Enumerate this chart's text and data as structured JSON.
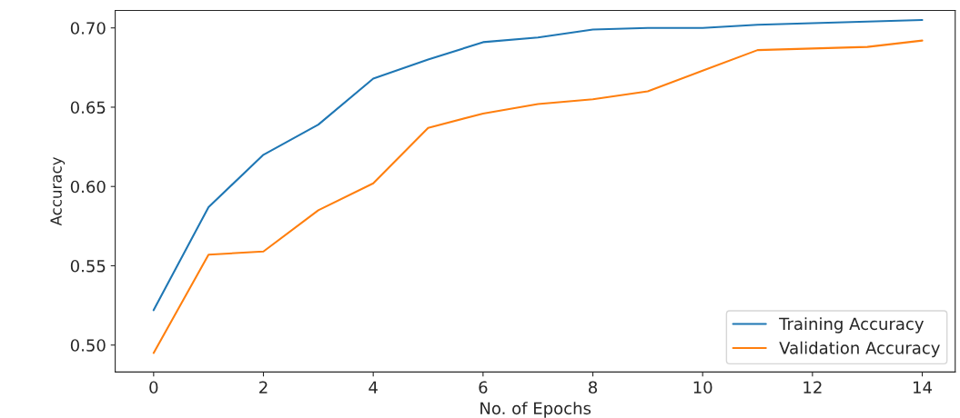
{
  "chart_data": {
    "type": "line",
    "xlabel": "No. of Epochs",
    "ylabel": "Accuracy",
    "x": [
      0,
      1,
      2,
      3,
      4,
      5,
      6,
      7,
      8,
      9,
      10,
      11,
      12,
      13,
      14
    ],
    "series": [
      {
        "name": "Training Accuracy",
        "color": "#1f77b4",
        "values": [
          0.522,
          0.587,
          0.62,
          0.639,
          0.668,
          0.68,
          0.691,
          0.694,
          0.699,
          0.7,
          0.7,
          0.702,
          0.703,
          0.704,
          0.705
        ]
      },
      {
        "name": "Validation Accuracy",
        "color": "#ff7f0e",
        "values": [
          0.495,
          0.557,
          0.559,
          0.585,
          0.602,
          0.637,
          0.646,
          0.652,
          0.655,
          0.66,
          0.673,
          0.686,
          0.687,
          0.688,
          0.692
        ]
      }
    ],
    "xlim": [
      -0.7,
      14.6
    ],
    "ylim": [
      0.483,
      0.711
    ],
    "xticks": [
      0,
      2,
      4,
      6,
      8,
      10,
      12,
      14
    ],
    "yticks": [
      {
        "value": 0.5,
        "label": "0.50"
      },
      {
        "value": 0.55,
        "label": "0.55"
      },
      {
        "value": 0.6,
        "label": "0.60"
      },
      {
        "value": 0.65,
        "label": "0.65"
      },
      {
        "value": 0.7,
        "label": "0.70"
      }
    ],
    "grid": false,
    "legend": "bottom right"
  }
}
